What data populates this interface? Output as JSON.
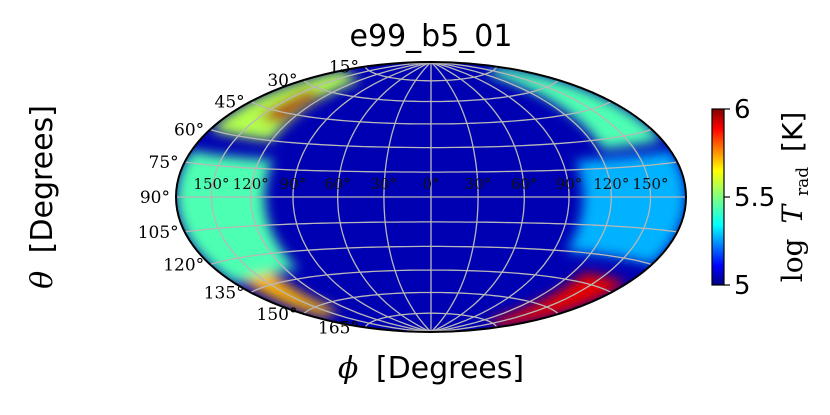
{
  "chart_data": {
    "type": "heatmap",
    "projection": "hammer-aitoff",
    "title": "e99_b5_01",
    "xlabel_symbol": "ϕ",
    "xlabel_unit": "[Degrees]",
    "ylabel_symbol": "θ",
    "ylabel_unit": "[Degrees]",
    "colorbar_label_prefix": "log",
    "colorbar_label_var": "T",
    "colorbar_label_sub": "rad",
    "colorbar_label_unit": "[K]",
    "colorbar_range": [
      5,
      6
    ],
    "colorbar_ticks": [
      "5",
      "5.5",
      "6"
    ],
    "colormap": "jet",
    "phi_ticks": [
      "150°",
      "120°",
      "90°",
      "60°",
      "30°",
      "0°",
      "30°",
      "60°",
      "90°",
      "120°",
      "150°"
    ],
    "theta_ticks": [
      "15°",
      "30°",
      "45°",
      "60°",
      "75°",
      "90°",
      "105°",
      "120°",
      "135°",
      "150°",
      "165°"
    ],
    "grid": true,
    "background_level": 5.0,
    "regions": [
      {
        "name": "upper-left hot band",
        "lon_range": [
          -180,
          -120
        ],
        "lat_range": [
          30,
          70
        ],
        "value": 5.55
      },
      {
        "name": "upper-left hot spot",
        "lon_range": [
          -150,
          -125
        ],
        "lat_range": [
          40,
          58
        ],
        "value": 5.95
      },
      {
        "name": "left-equatorial cyan band",
        "lon_range": [
          -180,
          -110
        ],
        "lat_range": [
          -40,
          20
        ],
        "value": 5.45
      },
      {
        "name": "lower-left hot patch",
        "lon_range": [
          -170,
          -135
        ],
        "lat_range": [
          -65,
          -40
        ],
        "value": 5.7
      },
      {
        "name": "upper-right edge band",
        "lon_range": [
          125,
          180
        ],
        "lat_range": [
          25,
          75
        ],
        "value": 5.45
      },
      {
        "name": "lower-right hot spot",
        "lon_range": [
          130,
          180
        ],
        "lat_range": [
          -75,
          -40
        ],
        "value": 5.9
      },
      {
        "name": "right cyan band",
        "lon_range": [
          100,
          180
        ],
        "lat_range": [
          -30,
          20
        ],
        "value": 5.3
      }
    ]
  }
}
